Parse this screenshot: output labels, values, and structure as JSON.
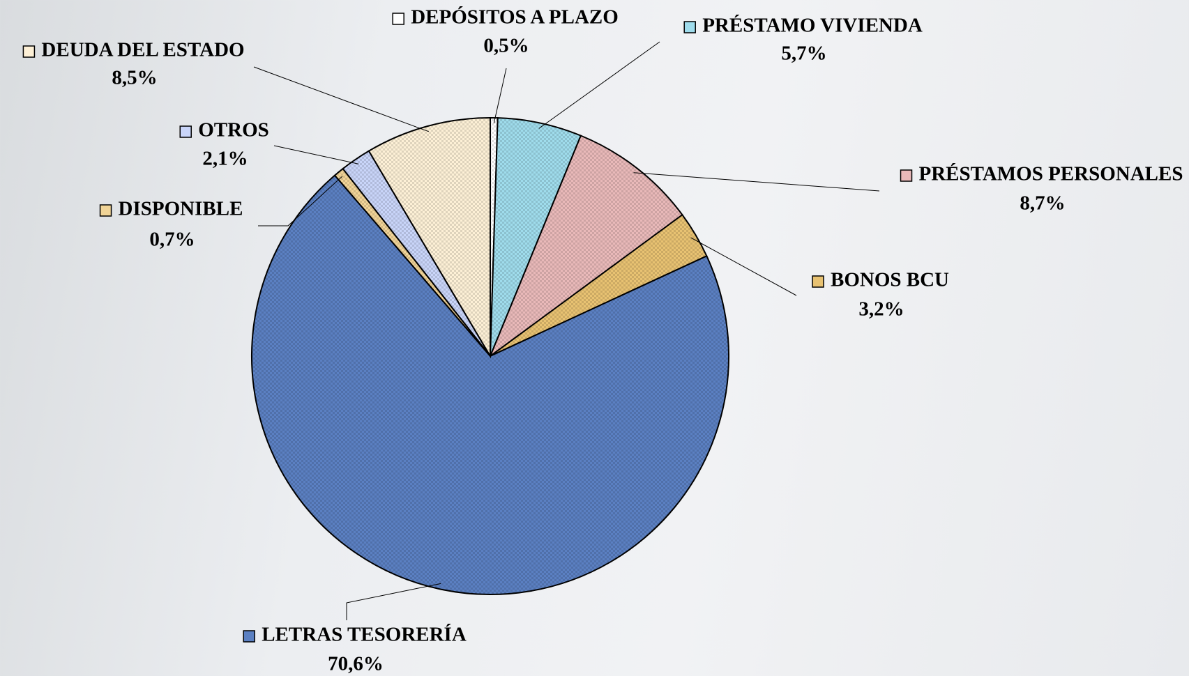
{
  "chart_data": {
    "type": "pie",
    "categories": [
      "DEPÓSITOS A PLAZO",
      "PRÉSTAMO VIVIENDA",
      "PRÉSTAMOS PERSONALES",
      "BONOS BCU",
      "LETRAS TESORERÍA",
      "DISPONIBLE",
      "OTROS",
      "DEUDA DEL ESTADO"
    ],
    "values": [
      0.5,
      5.7,
      8.7,
      3.2,
      70.6,
      0.7,
      2.1,
      8.5
    ],
    "value_labels": [
      "0,5%",
      "5,7%",
      "8,7%",
      "3,2%",
      "70,6%",
      "0,7%",
      "2,1%",
      "8,5%"
    ],
    "colors": [
      "#ffffff",
      "#9fdcec",
      "#e9b9b9",
      "#e8c272",
      "#5b80c2",
      "#f1d497",
      "#c9d5f9",
      "#fdf0d6"
    ]
  }
}
